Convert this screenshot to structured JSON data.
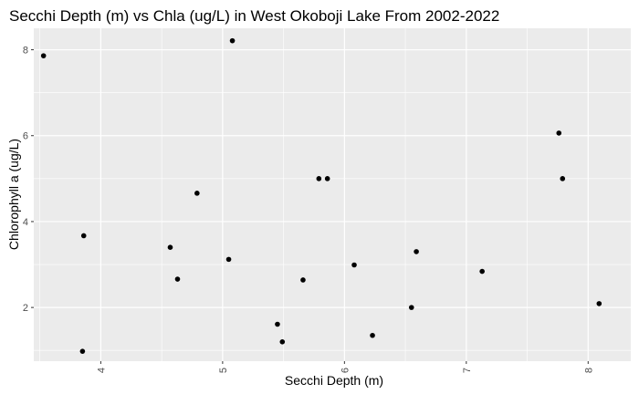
{
  "chart_data": {
    "type": "scatter",
    "title": "Secchi Depth (m) vs Chla (ug/L) in West Okoboji Lake From 2002-2022",
    "xlabel": "Secchi Depth (m)",
    "ylabel": "Chlorophyll a (ug/L)",
    "xlim": [
      3.45,
      8.35
    ],
    "ylim": [
      0.75,
      8.5
    ],
    "xticks": [
      4,
      5,
      6,
      7,
      8
    ],
    "yticks": [
      2,
      4,
      6,
      8
    ],
    "grid": true,
    "legend": "none",
    "colors": {
      "panel": "#ebebeb",
      "grid_major": "#ffffff",
      "point": "#000000",
      "tick_text": "#4d4d4d"
    },
    "points": [
      {
        "x": 3.53,
        "y": 7.86
      },
      {
        "x": 3.85,
        "y": 0.98
      },
      {
        "x": 3.86,
        "y": 3.67
      },
      {
        "x": 4.57,
        "y": 3.4
      },
      {
        "x": 4.63,
        "y": 2.66
      },
      {
        "x": 4.79,
        "y": 4.66
      },
      {
        "x": 5.05,
        "y": 3.12
      },
      {
        "x": 5.08,
        "y": 8.21
      },
      {
        "x": 5.45,
        "y": 1.61
      },
      {
        "x": 5.49,
        "y": 1.2
      },
      {
        "x": 5.66,
        "y": 2.64
      },
      {
        "x": 5.79,
        "y": 5.0
      },
      {
        "x": 5.86,
        "y": 5.0
      },
      {
        "x": 6.08,
        "y": 2.99
      },
      {
        "x": 6.23,
        "y": 1.35
      },
      {
        "x": 6.55,
        "y": 2.0
      },
      {
        "x": 6.59,
        "y": 3.3
      },
      {
        "x": 7.13,
        "y": 2.84
      },
      {
        "x": 7.76,
        "y": 6.06
      },
      {
        "x": 7.79,
        "y": 5.0
      },
      {
        "x": 8.09,
        "y": 2.09
      }
    ]
  }
}
